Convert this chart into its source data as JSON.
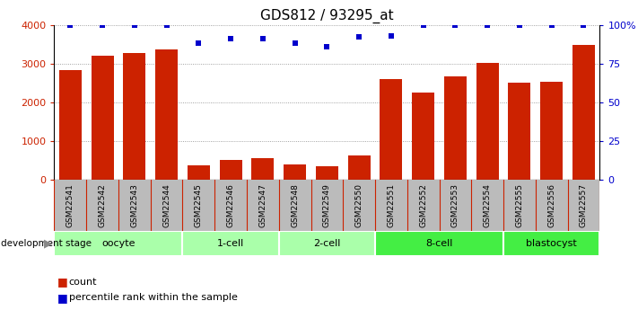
{
  "title": "GDS812 / 93295_at",
  "samples": [
    "GSM22541",
    "GSM22542",
    "GSM22543",
    "GSM22544",
    "GSM22545",
    "GSM22546",
    "GSM22547",
    "GSM22548",
    "GSM22549",
    "GSM22550",
    "GSM22551",
    "GSM22552",
    "GSM22553",
    "GSM22554",
    "GSM22555",
    "GSM22556",
    "GSM22557"
  ],
  "counts": [
    2820,
    3200,
    3280,
    3360,
    380,
    510,
    570,
    390,
    340,
    630,
    2590,
    2260,
    2680,
    3020,
    2510,
    2520,
    3490
  ],
  "percentiles": [
    100,
    100,
    100,
    100,
    88,
    91,
    91,
    88,
    86,
    92,
    93,
    100,
    100,
    100,
    100,
    100,
    100
  ],
  "bar_color": "#cc2200",
  "dot_color": "#0000cc",
  "ylim_left": [
    0,
    4000
  ],
  "ylim_right": [
    0,
    100
  ],
  "yticks_left": [
    0,
    1000,
    2000,
    3000,
    4000
  ],
  "ytick_labels_left": [
    "0",
    "1000",
    "2000",
    "3000",
    "4000"
  ],
  "yticks_right": [
    0,
    25,
    50,
    75,
    100
  ],
  "ytick_labels_right": [
    "0",
    "25",
    "50",
    "75",
    "100%"
  ],
  "groups": [
    {
      "label": "oocyte",
      "start": 0,
      "end": 3,
      "color": "#aaffaa"
    },
    {
      "label": "1-cell",
      "start": 4,
      "end": 6,
      "color": "#aaffaa"
    },
    {
      "label": "2-cell",
      "start": 7,
      "end": 9,
      "color": "#aaffaa"
    },
    {
      "label": "8-cell",
      "start": 10,
      "end": 13,
      "color": "#44ee44"
    },
    {
      "label": "blastocyst",
      "start": 14,
      "end": 16,
      "color": "#44ee44"
    }
  ],
  "dev_stage_label": "development stage",
  "legend_count_label": "count",
  "legend_pct_label": "percentile rank within the sample",
  "grid_color": "#888888",
  "bg_color": "#ffffff",
  "tick_bg_color": "#bbbbbb"
}
